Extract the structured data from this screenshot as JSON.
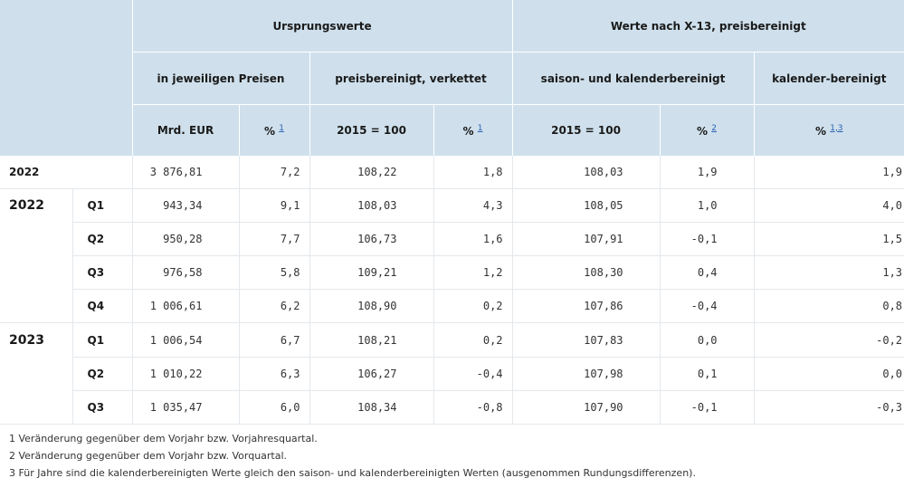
{
  "header": {
    "group1": "Ursprungswerte",
    "group2": "Werte nach X-13, preisbereinigt",
    "sub1": "in jeweiligen Preisen",
    "sub2": "preisbereinigt, verkettet",
    "sub3": "saison- und kalenderbereinigt",
    "sub4": "kalender-bereinigt",
    "units": [
      {
        "label": "Mrd. EUR",
        "fn": ""
      },
      {
        "label": "%",
        "fn": "1"
      },
      {
        "label": "2015 = 100",
        "fn": ""
      },
      {
        "label": "%",
        "fn": "1"
      },
      {
        "label": "2015 = 100",
        "fn": ""
      },
      {
        "label": "%",
        "fn": "2"
      },
      {
        "label": "%",
        "fn": "1,3"
      }
    ]
  },
  "rows": [
    {
      "year": "2022",
      "quarter": "",
      "values": [
        "3 876,81",
        "7,2",
        "108,22",
        "1,8",
        "108,03",
        "1,9",
        "1,9"
      ]
    },
    {
      "year": "2022",
      "quarter": "Q1",
      "values": [
        "943,34",
        "9,1",
        "108,03",
        "4,3",
        "108,05",
        "1,0",
        "4,0"
      ]
    },
    {
      "year": "",
      "quarter": "Q2",
      "values": [
        "950,28",
        "7,7",
        "106,73",
        "1,6",
        "107,91",
        "-0,1",
        "1,5"
      ]
    },
    {
      "year": "",
      "quarter": "Q3",
      "values": [
        "976,58",
        "5,8",
        "109,21",
        "1,2",
        "108,30",
        "0,4",
        "1,3"
      ]
    },
    {
      "year": "",
      "quarter": "Q4",
      "values": [
        "1 006,61",
        "6,2",
        "108,90",
        "0,2",
        "107,86",
        "-0,4",
        "0,8"
      ]
    },
    {
      "year": "2023",
      "quarter": "Q1",
      "values": [
        "1 006,54",
        "6,7",
        "108,21",
        "0,2",
        "107,83",
        "0,0",
        "-0,2"
      ]
    },
    {
      "year": "",
      "quarter": "Q2",
      "values": [
        "1 010,22",
        "6,3",
        "106,27",
        "-0,4",
        "107,98",
        "0,1",
        "0,0"
      ]
    },
    {
      "year": "",
      "quarter": "Q3",
      "values": [
        "1 035,47",
        "6,0",
        "108,34",
        "-0,8",
        "107,90",
        "-0,1",
        "-0,3"
      ]
    }
  ],
  "footnotes": [
    "1 Veränderung gegenüber dem Vorjahr bzw. Vorjahresquartal.",
    "2 Veränderung gegenüber dem Vorjahr bzw. Vorquartal.",
    "3 Für Jahre sind die kalenderbereinigten Werte gleich den saison- und kalenderbereinigten Werten (ausgenommen Rundungsdifferenzen)."
  ]
}
